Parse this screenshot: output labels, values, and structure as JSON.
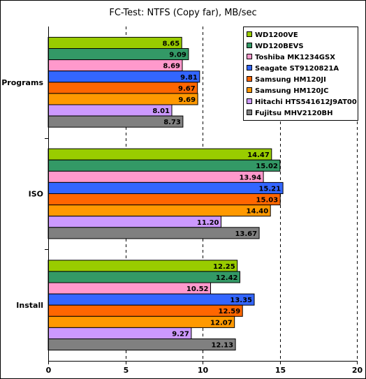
{
  "chart_data": {
    "type": "bar",
    "orientation": "horizontal",
    "title": "FC-Test: NTFS (Copy far), MB/sec",
    "categories": [
      "Programs",
      "ISO",
      "Install"
    ],
    "xlim": [
      0,
      20
    ],
    "xticks": [
      0,
      5,
      10,
      15,
      20
    ],
    "grid": true,
    "legend": "top-right",
    "series": [
      {
        "name": "WD1200VE",
        "color": "#99cc00",
        "values": [
          8.65,
          14.47,
          12.25
        ]
      },
      {
        "name": "WD120BEVS",
        "color": "#339966",
        "values": [
          9.09,
          15.02,
          12.42
        ]
      },
      {
        "name": "Toshiba MK1234GSX",
        "color": "#ff99cc",
        "values": [
          8.69,
          13.94,
          10.52
        ]
      },
      {
        "name": "Seagate ST9120821A",
        "color": "#3366ff",
        "values": [
          9.81,
          15.21,
          13.35
        ]
      },
      {
        "name": "Samsung HM120JI",
        "color": "#ff6600",
        "values": [
          9.67,
          15.03,
          12.59
        ]
      },
      {
        "name": "Samsung HM120JC",
        "color": "#ff9900",
        "values": [
          9.69,
          14.4,
          12.07
        ]
      },
      {
        "name": "Hitachi HTS541612J9AT00",
        "color": "#cc99ff",
        "values": [
          8.01,
          11.2,
          9.27
        ]
      },
      {
        "name": "Fujitsu MHV2120BH",
        "color": "#808080",
        "values": [
          8.73,
          13.67,
          12.13
        ]
      }
    ]
  }
}
